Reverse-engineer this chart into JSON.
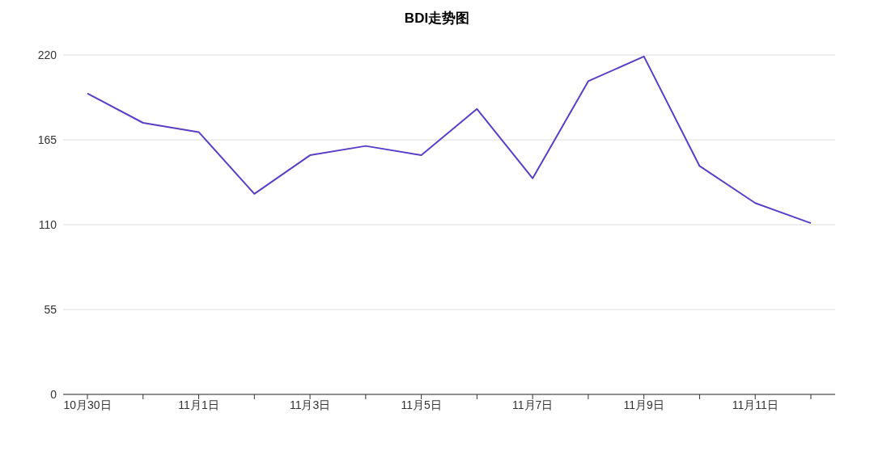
{
  "chart_data": {
    "type": "line",
    "title": "BDI走势图",
    "categories": [
      "10月30日",
      null,
      "11月1日",
      null,
      "11月3日",
      null,
      "11月5日",
      null,
      "11月7日",
      null,
      "11月9日",
      null,
      "11月11日",
      null
    ],
    "series": [
      {
        "color": "#5a3ec8",
        "values": [
          195,
          176,
          170,
          130,
          155,
          161,
          155,
          185,
          140,
          203,
          219,
          148,
          124,
          111
        ]
      }
    ],
    "ylim": [
      0,
      220
    ],
    "yticks": [
      0,
      55,
      110,
      165,
      220
    ],
    "grid": "y",
    "marker": "none",
    "line_style": "solid"
  }
}
